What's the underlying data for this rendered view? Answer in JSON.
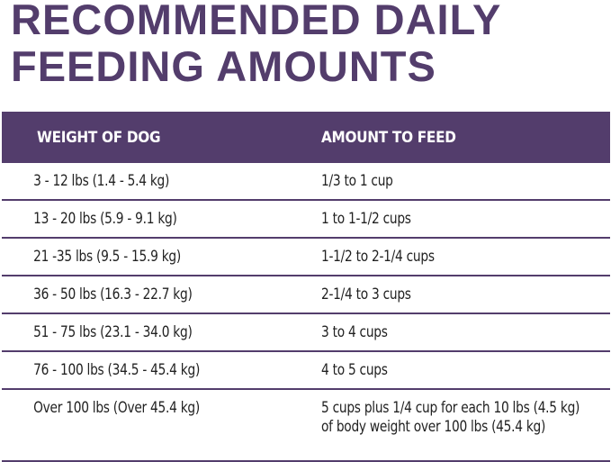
{
  "title": "RECOMMENDED DAILY FEEDING AMOUNTS",
  "table": {
    "headers": [
      "WEIGHT OF DOG",
      "AMOUNT TO FEED"
    ],
    "rows": [
      [
        "3 - 12 lbs (1.4 - 5.4 kg)",
        "1/3 to 1 cup"
      ],
      [
        "13 - 20 lbs (5.9 - 9.1 kg)",
        "1 to 1-1/2 cups"
      ],
      [
        "21 -35 lbs (9.5 - 15.9 kg)",
        "1-1/2 to 2-1/4 cups"
      ],
      [
        "36 - 50 lbs (16.3 - 22.7 kg)",
        "2-1/4 to 3 cups"
      ],
      [
        "51 - 75 lbs (23.1 - 34.0 kg)",
        "3 to 4 cups"
      ],
      [
        "76 - 100 lbs (34.5 - 45.4 kg)",
        "4 to 5 cups"
      ],
      [
        "Over 100 lbs (Over 45.4 kg)",
        "5 cups plus 1/4 cup for each 10 lbs (4.5 kg) of body weight over 100 lbs (45.4 kg)"
      ]
    ]
  }
}
